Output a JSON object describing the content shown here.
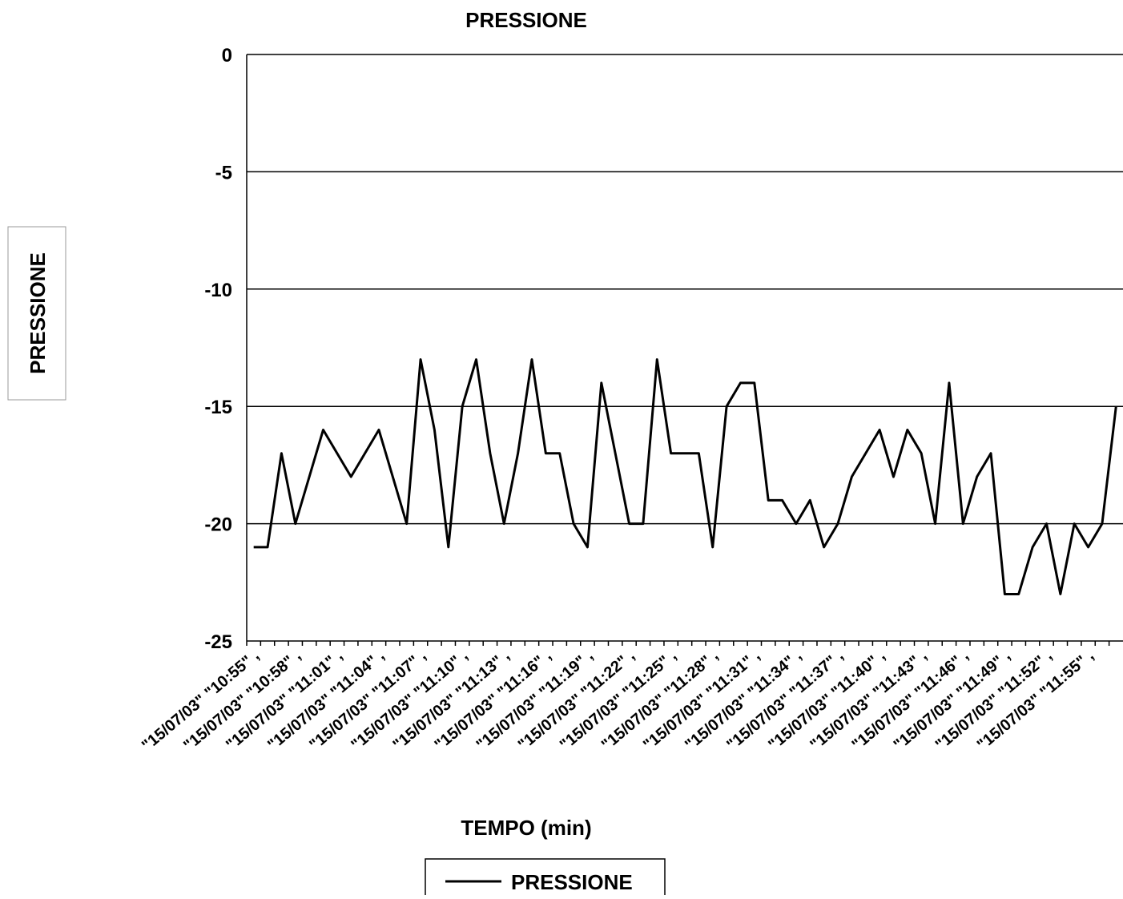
{
  "chart_data": {
    "type": "line",
    "title": "PRESSIONE",
    "x_label": "TEMPO (min)",
    "y_label": "PRESSIONE",
    "categories": [
      "\"15/07/03\" \"10:55\" ,",
      null,
      null,
      "\"15/07/03\" \"10:58\" ,",
      null,
      null,
      "\"15/07/03\" \"11:01\" ,",
      null,
      null,
      "\"15/07/03\" \"11:04\" ,",
      null,
      null,
      "\"15/07/03\" \"11:07\" ,",
      null,
      null,
      "\"15/07/03\" \"11:10\" ,",
      null,
      null,
      "\"15/07/03\" \"11:13\" ,",
      null,
      null,
      "\"15/07/03\" \"11:16\" ,",
      null,
      null,
      "\"15/07/03\" \"11:19\" ,",
      null,
      null,
      "\"15/07/03\" \"11:22\" ,",
      null,
      null,
      "\"15/07/03\" \"11:25\" ,",
      null,
      null,
      "\"15/07/03\" \"11:28\" ,",
      null,
      null,
      "\"15/07/03\" \"11:31\" ,",
      null,
      null,
      "\"15/07/03\" \"11:34\" ,",
      null,
      null,
      "\"15/07/03\" \"11:37\" ,",
      null,
      null,
      "\"15/07/03\" \"11:40\" ,",
      null,
      null,
      "\"15/07/03\" \"11:43\" ,",
      null,
      null,
      "\"15/07/03\" \"11:46\" ,",
      null,
      null,
      "\"15/07/03\" \"11:49\" ,",
      null,
      null,
      "\"15/07/03\" \"11:52\" ,",
      null,
      null,
      "\"15/07/03\" \"11:55\" ,",
      null,
      null
    ],
    "series": [
      {
        "name": "PRESSIONE",
        "color": "#000000",
        "values": [
          -21,
          -21,
          -17,
          -20,
          -18,
          -16,
          -17,
          -18,
          -17,
          -16,
          -18,
          -20,
          -13,
          -16,
          -21,
          -15,
          -13,
          -17,
          -20,
          -17,
          -13,
          -17,
          -17,
          -20,
          -21,
          -14,
          -17,
          -20,
          -20,
          -13,
          -17,
          -17,
          -17,
          -21,
          -15,
          -14,
          -14,
          -19,
          -19,
          -20,
          -19,
          -21,
          -20,
          -18,
          -17,
          -16,
          -18,
          -16,
          -17,
          -20,
          -14,
          -20,
          -18,
          -17,
          -23,
          -23,
          -21,
          -20,
          -23,
          -20,
          -21,
          -20,
          -15
        ]
      }
    ],
    "ylim": [
      -25,
      0
    ],
    "yticks": [
      -25,
      -20,
      -15,
      -10,
      -5,
      0
    ],
    "grid": true,
    "legend": "bottom"
  }
}
